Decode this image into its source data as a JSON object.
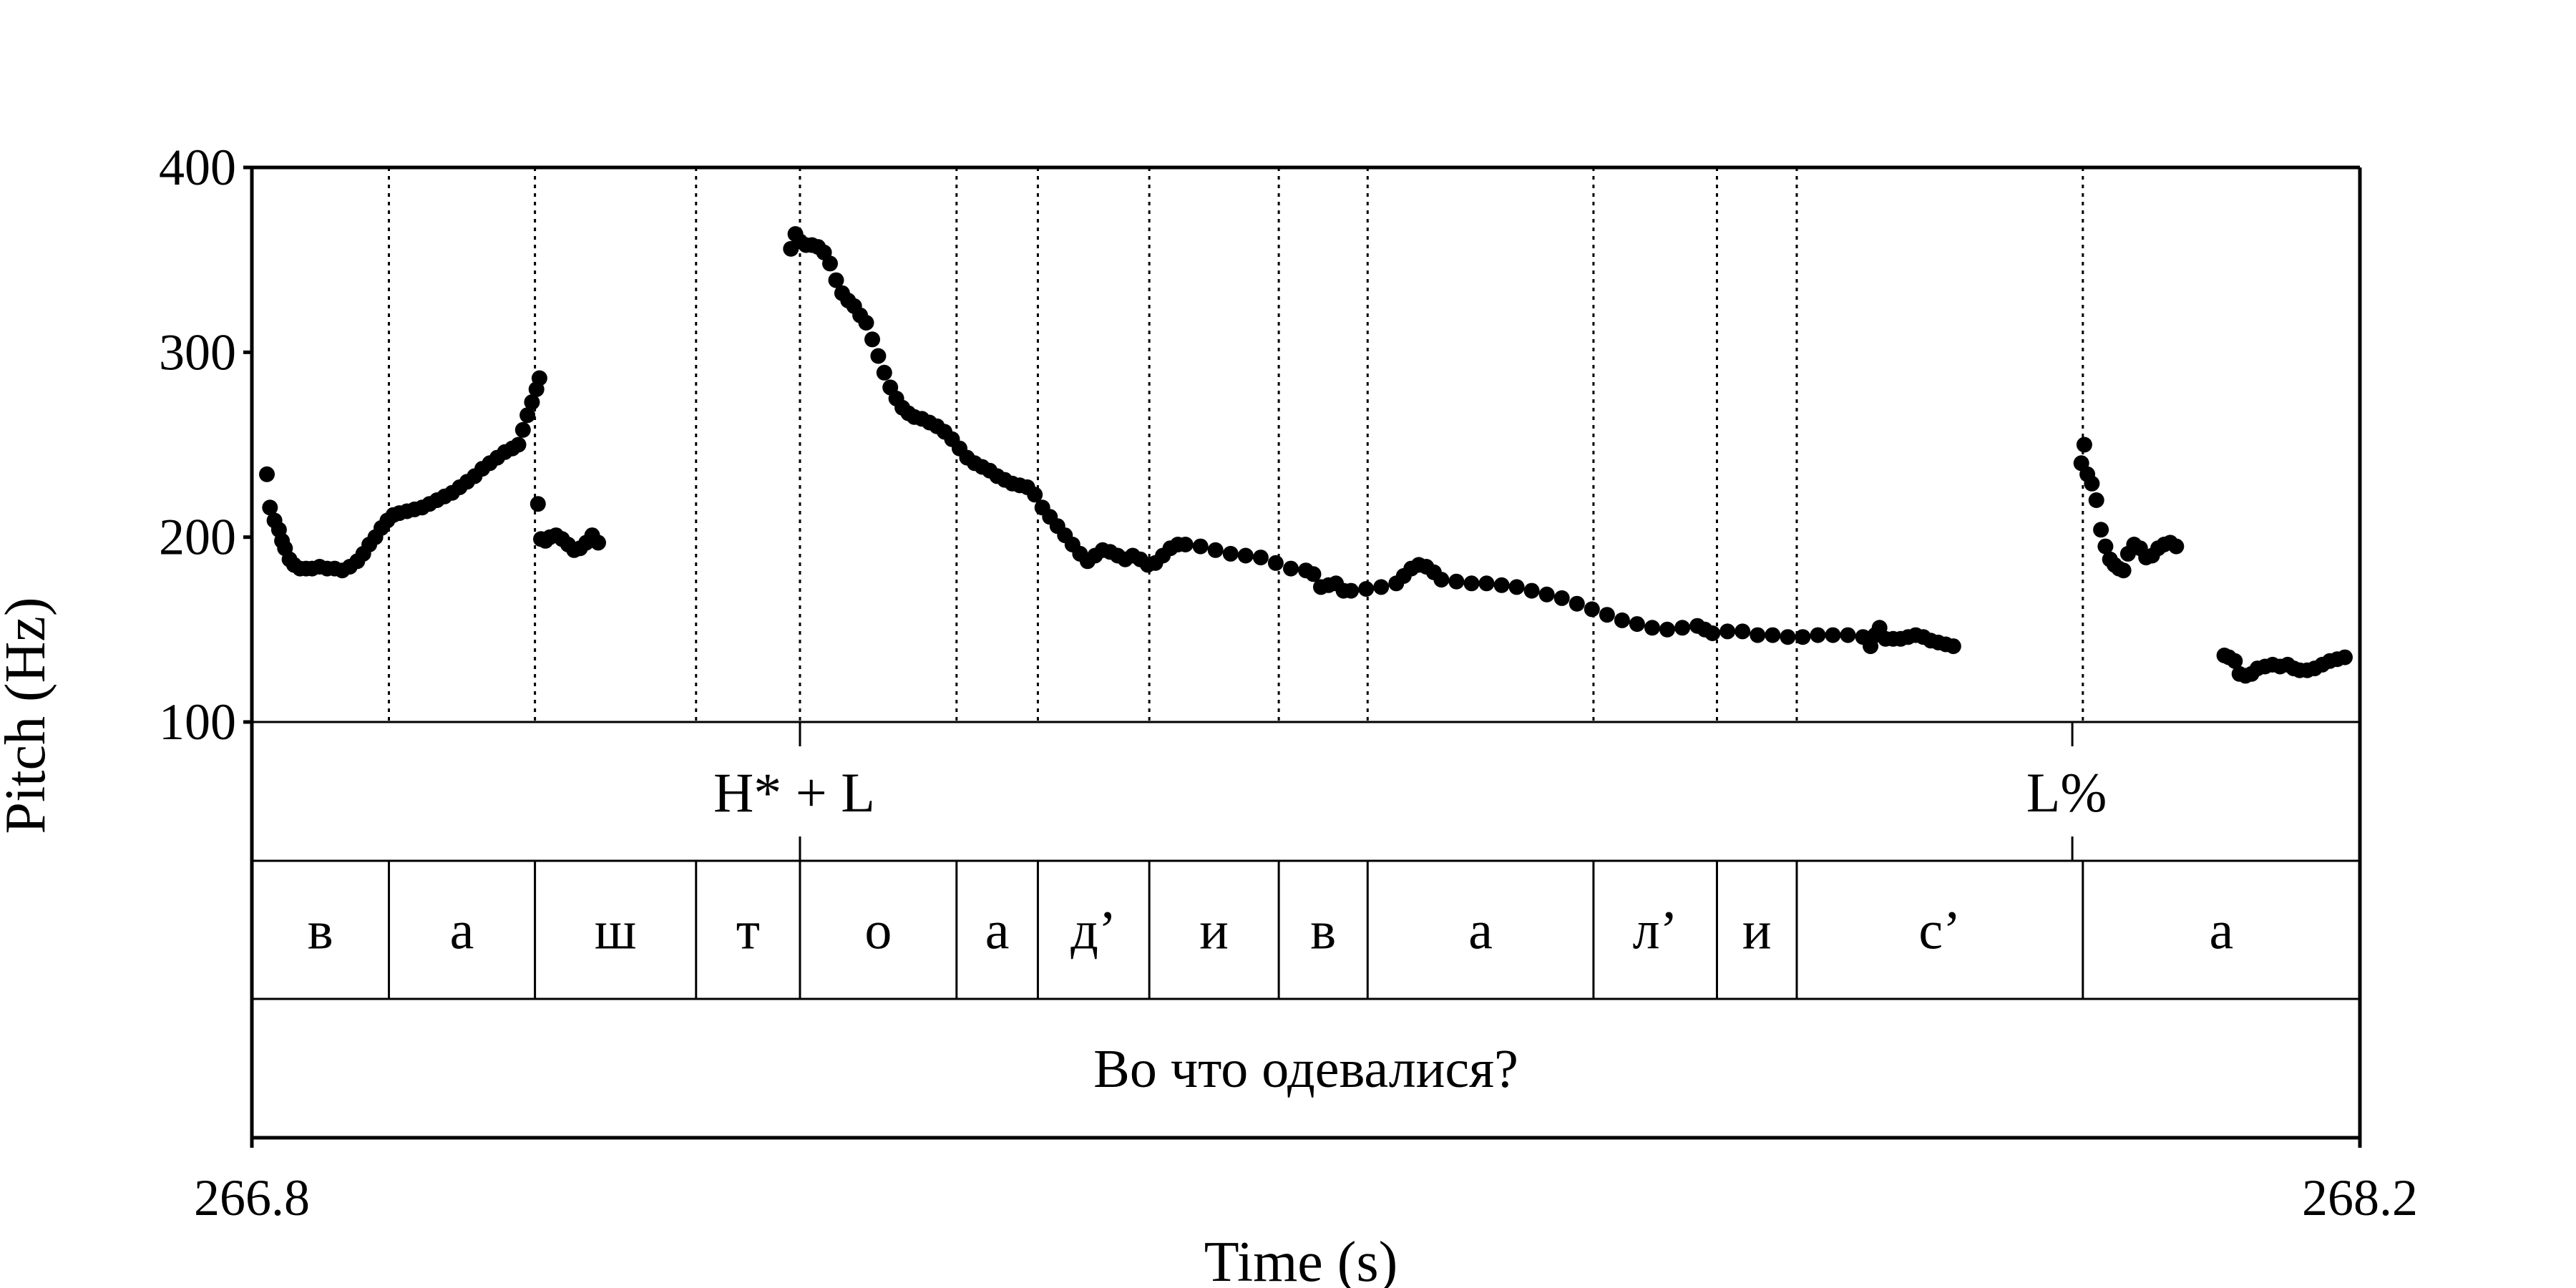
{
  "chart_data": {
    "type": "scatter",
    "title": "",
    "xlabel": "Time (s)",
    "ylabel": "Pitch (Hz)",
    "xlim": [
      266.8,
      268.2
    ],
    "ylim": [
      100,
      400
    ],
    "x_ticks": [
      "266.8",
      "268.2"
    ],
    "y_ticks": [
      "100",
      "200",
      "300",
      "400"
    ],
    "grid": false,
    "series_color": "#000000",
    "tones": [
      {
        "label": "H* + L",
        "time": 267.164
      },
      {
        "label": "L%",
        "time": 268.009
      }
    ],
    "segment_boundaries": [
      266.891,
      266.988,
      267.095,
      267.164,
      267.268,
      267.322,
      267.396,
      267.482,
      267.541,
      267.691,
      267.773,
      267.826,
      268.016
    ],
    "segments": [
      "в",
      "а",
      "ш",
      "т",
      "о",
      "а",
      "д’",
      "и",
      "в",
      "а",
      "л’",
      "и",
      "с’",
      "а"
    ],
    "phrase": "Во что одевалися?",
    "pitch_points": [
      [
        266.81,
        234
      ],
      [
        266.812,
        216
      ],
      [
        266.815,
        209
      ],
      [
        266.818,
        204
      ],
      [
        266.82,
        198
      ],
      [
        266.822,
        194
      ],
      [
        266.825,
        188
      ],
      [
        266.828,
        185
      ],
      [
        266.832,
        183
      ],
      [
        266.836,
        183
      ],
      [
        266.84,
        183
      ],
      [
        266.845,
        184
      ],
      [
        266.85,
        183
      ],
      [
        266.855,
        183
      ],
      [
        266.86,
        182
      ],
      [
        266.865,
        184
      ],
      [
        266.87,
        187
      ],
      [
        266.874,
        191
      ],
      [
        266.878,
        196
      ],
      [
        266.882,
        200
      ],
      [
        266.886,
        205
      ],
      [
        266.89,
        209
      ],
      [
        266.894,
        212
      ],
      [
        266.898,
        213
      ],
      [
        266.903,
        214
      ],
      [
        266.908,
        215
      ],
      [
        266.913,
        216
      ],
      [
        266.918,
        218
      ],
      [
        266.923,
        220
      ],
      [
        266.928,
        222
      ],
      [
        266.933,
        224
      ],
      [
        266.938,
        227
      ],
      [
        266.943,
        230
      ],
      [
        266.948,
        233
      ],
      [
        266.953,
        237
      ],
      [
        266.958,
        240
      ],
      [
        266.963,
        243
      ],
      [
        266.968,
        246
      ],
      [
        266.973,
        248
      ],
      [
        266.977,
        250
      ],
      [
        266.98,
        258
      ],
      [
        266.983,
        266
      ],
      [
        266.986,
        273
      ],
      [
        266.989,
        280
      ],
      [
        266.991,
        286
      ],
      [
        266.99,
        218
      ],
      [
        266.992,
        199
      ],
      [
        266.995,
        198
      ],
      [
        266.998,
        200
      ],
      [
        267.002,
        201
      ],
      [
        267.006,
        199
      ],
      [
        267.01,
        196
      ],
      [
        267.014,
        193
      ],
      [
        267.018,
        194
      ],
      [
        267.022,
        197
      ],
      [
        267.026,
        201
      ],
      [
        267.03,
        197
      ],
      [
        267.158,
        356
      ],
      [
        267.161,
        364
      ],
      [
        267.164,
        360
      ],
      [
        267.168,
        358
      ],
      [
        267.172,
        358
      ],
      [
        267.176,
        357
      ],
      [
        267.18,
        354
      ],
      [
        267.184,
        348
      ],
      [
        267.188,
        339
      ],
      [
        267.192,
        332
      ],
      [
        267.196,
        328
      ],
      [
        267.2,
        325
      ],
      [
        267.204,
        320
      ],
      [
        267.208,
        316
      ],
      [
        267.212,
        307
      ],
      [
        267.216,
        298
      ],
      [
        267.22,
        289
      ],
      [
        267.224,
        281
      ],
      [
        267.228,
        275
      ],
      [
        267.232,
        270
      ],
      [
        267.236,
        267
      ],
      [
        267.24,
        265
      ],
      [
        267.245,
        264
      ],
      [
        267.25,
        262
      ],
      [
        267.255,
        260
      ],
      [
        267.26,
        257
      ],
      [
        267.265,
        253
      ],
      [
        267.27,
        248
      ],
      [
        267.275,
        243
      ],
      [
        267.28,
        240
      ],
      [
        267.285,
        238
      ],
      [
        267.29,
        236
      ],
      [
        267.295,
        233
      ],
      [
        267.3,
        231
      ],
      [
        267.305,
        229
      ],
      [
        267.31,
        228
      ],
      [
        267.315,
        227
      ],
      [
        267.32,
        223
      ],
      [
        267.325,
        216
      ],
      [
        267.33,
        211
      ],
      [
        267.335,
        206
      ],
      [
        267.34,
        201
      ],
      [
        267.345,
        196
      ],
      [
        267.35,
        191
      ],
      [
        267.355,
        187
      ],
      [
        267.36,
        190
      ],
      [
        267.365,
        193
      ],
      [
        267.37,
        192
      ],
      [
        267.375,
        190
      ],
      [
        267.38,
        188
      ],
      [
        267.385,
        190
      ],
      [
        267.39,
        188
      ],
      [
        267.395,
        185
      ],
      [
        267.4,
        186
      ],
      [
        267.405,
        190
      ],
      [
        267.41,
        194
      ],
      [
        267.415,
        196
      ],
      [
        267.42,
        196
      ],
      [
        267.43,
        195
      ],
      [
        267.44,
        193
      ],
      [
        267.45,
        191
      ],
      [
        267.46,
        190
      ],
      [
        267.47,
        189
      ],
      [
        267.48,
        186
      ],
      [
        267.49,
        183
      ],
      [
        267.5,
        182
      ],
      [
        267.505,
        180
      ],
      [
        267.51,
        173
      ],
      [
        267.515,
        174
      ],
      [
        267.52,
        175
      ],
      [
        267.525,
        171
      ],
      [
        267.53,
        171
      ],
      [
        267.54,
        172
      ],
      [
        267.55,
        173
      ],
      [
        267.56,
        175
      ],
      [
        267.565,
        179
      ],
      [
        267.57,
        183
      ],
      [
        267.575,
        185
      ],
      [
        267.58,
        184
      ],
      [
        267.585,
        181
      ],
      [
        267.59,
        177
      ],
      [
        267.6,
        176
      ],
      [
        267.61,
        175
      ],
      [
        267.62,
        175
      ],
      [
        267.63,
        174
      ],
      [
        267.64,
        173
      ],
      [
        267.65,
        171
      ],
      [
        267.66,
        169
      ],
      [
        267.67,
        167
      ],
      [
        267.68,
        164
      ],
      [
        267.69,
        161
      ],
      [
        267.7,
        158
      ],
      [
        267.71,
        155
      ],
      [
        267.72,
        153
      ],
      [
        267.73,
        151
      ],
      [
        267.74,
        150
      ],
      [
        267.75,
        151
      ],
      [
        267.76,
        152
      ],
      [
        267.765,
        150
      ],
      [
        267.77,
        148
      ],
      [
        267.78,
        149
      ],
      [
        267.79,
        149
      ],
      [
        267.8,
        147
      ],
      [
        267.81,
        147
      ],
      [
        267.82,
        146
      ],
      [
        267.83,
        146
      ],
      [
        267.84,
        147
      ],
      [
        267.85,
        147
      ],
      [
        267.86,
        147
      ],
      [
        267.87,
        146
      ],
      [
        267.875,
        141
      ],
      [
        267.878,
        147
      ],
      [
        267.881,
        151
      ],
      [
        267.885,
        145
      ],
      [
        267.89,
        145
      ],
      [
        267.895,
        145
      ],
      [
        267.9,
        146
      ],
      [
        267.905,
        147
      ],
      [
        267.91,
        146
      ],
      [
        267.915,
        144
      ],
      [
        267.92,
        143
      ],
      [
        267.925,
        142
      ],
      [
        267.93,
        141
      ],
      [
        268.015,
        240
      ],
      [
        268.017,
        250
      ],
      [
        268.019,
        234
      ],
      [
        268.022,
        229
      ],
      [
        268.025,
        220
      ],
      [
        268.028,
        204
      ],
      [
        268.031,
        195
      ],
      [
        268.034,
        188
      ],
      [
        268.037,
        185
      ],
      [
        268.04,
        183
      ],
      [
        268.043,
        182
      ],
      [
        268.046,
        191
      ],
      [
        268.05,
        196
      ],
      [
        268.054,
        194
      ],
      [
        268.058,
        189
      ],
      [
        268.062,
        190
      ],
      [
        268.066,
        194
      ],
      [
        268.07,
        196
      ],
      [
        268.074,
        197
      ],
      [
        268.078,
        195
      ],
      [
        268.11,
        136
      ],
      [
        268.113,
        135
      ],
      [
        268.117,
        133
      ],
      [
        268.12,
        126
      ],
      [
        268.124,
        125
      ],
      [
        268.128,
        126
      ],
      [
        268.132,
        129
      ],
      [
        268.137,
        130
      ],
      [
        268.142,
        131
      ],
      [
        268.147,
        130
      ],
      [
        268.152,
        131
      ],
      [
        268.156,
        129
      ],
      [
        268.16,
        128
      ],
      [
        268.165,
        128
      ],
      [
        268.17,
        129
      ],
      [
        268.175,
        131
      ],
      [
        268.18,
        133
      ],
      [
        268.185,
        134
      ],
      [
        268.19,
        135
      ]
    ]
  }
}
